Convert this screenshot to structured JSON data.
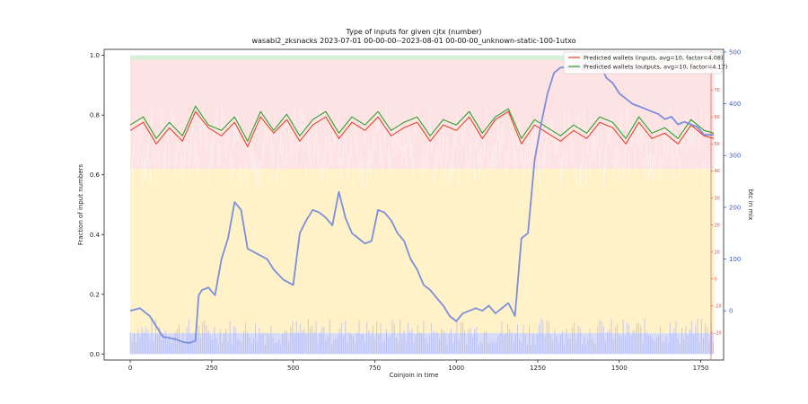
{
  "chart_data": {
    "type": "line",
    "title": "Type of inputs for given cjtx (number)",
    "subtitle": "wasabi2_zksnacks 2023-07-01 00-00-00--2023-08-01 00-00-00_unknown-static-100-1utxo",
    "xlabel": "Coinjoin in time",
    "ylabel": "Fraction of input numbers",
    "ylabel_right": "btc in mix",
    "xlim": [
      -80,
      1820
    ],
    "ylim": [
      -0.02,
      1.02
    ],
    "ylim_right_red": [
      -30,
      85
    ],
    "ylim_right_blue": [
      -95,
      505
    ],
    "x_ticks": [
      "0",
      "250",
      "500",
      "750",
      "1000",
      "1250",
      "1500",
      "1750"
    ],
    "y_ticks": [
      "0.0",
      "0.2",
      "0.4",
      "0.6",
      "0.8",
      "1.0"
    ],
    "red_ticks": [
      "-20",
      "-10",
      "0",
      "10",
      "20",
      "30",
      "40",
      "50",
      "60",
      "70"
    ],
    "blue_ticks": [
      "0",
      "100",
      "200",
      "300",
      "400",
      "500"
    ],
    "legend_position": "top-right",
    "legend": [
      {
        "label": "Predicted wallets (inputs, avg=10, factor=4.08)",
        "color": "#e8402a"
      },
      {
        "label": "Predicted wallets (outputs, avg=10, factor=4.17)",
        "color": "#2ca02c"
      }
    ],
    "series": [
      {
        "name": "Predicted wallets (inputs, avg=10, factor=4.08)",
        "axis": "red",
        "color": "#e8402a",
        "x": [
          0,
          40,
          80,
          120,
          160,
          200,
          240,
          280,
          320,
          360,
          400,
          440,
          480,
          520,
          560,
          600,
          640,
          680,
          720,
          760,
          800,
          840,
          880,
          920,
          960,
          1000,
          1040,
          1080,
          1120,
          1160,
          1200,
          1240,
          1280,
          1320,
          1360,
          1400,
          1440,
          1480,
          1520,
          1560,
          1600,
          1640,
          1680,
          1720,
          1760,
          1790
        ],
        "y": [
          55,
          58,
          50,
          56,
          51,
          62,
          56,
          53,
          58,
          49,
          60,
          54,
          59,
          51,
          57,
          60,
          52,
          58,
          55,
          60,
          53,
          56,
          58,
          51,
          57,
          55,
          60,
          52,
          59,
          62,
          50,
          57,
          54,
          51,
          55,
          52,
          58,
          56,
          50,
          58,
          52,
          54,
          50,
          57,
          53,
          52
        ]
      },
      {
        "name": "Predicted wallets (outputs, avg=10, factor=4.17)",
        "axis": "red",
        "color": "#2ca02c",
        "x": [
          0,
          40,
          80,
          120,
          160,
          200,
          240,
          280,
          320,
          360,
          400,
          440,
          480,
          520,
          560,
          600,
          640,
          680,
          720,
          760,
          800,
          840,
          880,
          920,
          960,
          1000,
          1040,
          1080,
          1120,
          1160,
          1200,
          1240,
          1280,
          1320,
          1360,
          1400,
          1440,
          1480,
          1520,
          1560,
          1600,
          1640,
          1680,
          1720,
          1760,
          1790
        ],
        "y": [
          57,
          60,
          52,
          58,
          53,
          64,
          57,
          55,
          60,
          51,
          62,
          55,
          61,
          53,
          59,
          62,
          54,
          60,
          57,
          62,
          55,
          58,
          60,
          53,
          59,
          57,
          62,
          54,
          60,
          63,
          52,
          59,
          56,
          53,
          57,
          54,
          60,
          58,
          52,
          60,
          54,
          56,
          52,
          59,
          55,
          54
        ]
      },
      {
        "name": "",
        "axis": "blue",
        "color": "#7b8fdc",
        "x": [
          0,
          30,
          60,
          80,
          100,
          140,
          160,
          180,
          200,
          210,
          220,
          240,
          260,
          280,
          300,
          320,
          340,
          360,
          390,
          420,
          440,
          470,
          500,
          520,
          540,
          560,
          580,
          600,
          620,
          640,
          660,
          680,
          700,
          720,
          740,
          760,
          780,
          800,
          820,
          840,
          860,
          880,
          900,
          920,
          940,
          960,
          980,
          1000,
          1020,
          1040,
          1060,
          1080,
          1100,
          1120,
          1140,
          1160,
          1180,
          1200,
          1220,
          1240,
          1260,
          1280,
          1300,
          1320,
          1340,
          1360,
          1380,
          1400,
          1420,
          1440,
          1460,
          1480,
          1500,
          1520,
          1540,
          1560,
          1580,
          1600,
          1620,
          1640,
          1660,
          1680,
          1700,
          1720,
          1740,
          1760,
          1790
        ],
        "y": [
          0,
          5,
          -10,
          -30,
          -50,
          -55,
          -60,
          -62,
          -58,
          30,
          40,
          45,
          30,
          100,
          140,
          210,
          195,
          120,
          110,
          100,
          80,
          60,
          50,
          150,
          175,
          195,
          190,
          180,
          165,
          230,
          180,
          150,
          140,
          130,
          135,
          195,
          190,
          175,
          150,
          135,
          100,
          80,
          50,
          40,
          25,
          10,
          -10,
          -20,
          -5,
          0,
          5,
          0,
          10,
          -5,
          5,
          15,
          -10,
          140,
          150,
          290,
          360,
          420,
          460,
          470,
          470,
          470,
          470,
          480,
          480,
          480,
          450,
          440,
          420,
          410,
          400,
          395,
          390,
          385,
          380,
          370,
          375,
          360,
          365,
          360,
          355,
          340,
          340
        ]
      }
    ],
    "notes": "Background shows stacked translucent per-coinjoin composition bands (blue at bottom, yellow large middle, pink upper, green at top)."
  }
}
